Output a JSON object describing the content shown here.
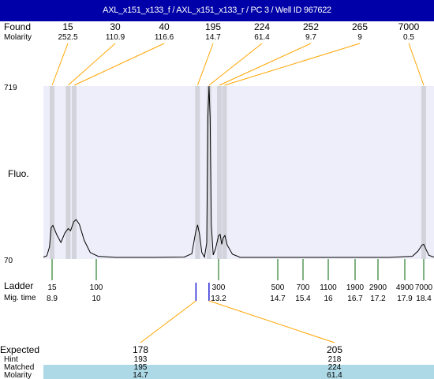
{
  "title": "AXL_x151_x133_f / AXL_x151_x133_r / PC 3 / Well ID 967622",
  "labels": {
    "found": "Found",
    "molarity": "Molarity",
    "fluo": "Fluo.",
    "ladder": "Ladder",
    "mig_time": "Mig. time",
    "expected": "Expected",
    "hint": "Hint",
    "matched": "Matched",
    "molarity_bottom": "Molarity"
  },
  "colors": {
    "title_bg": "#0000a8",
    "plot_bg": "#eeeefa",
    "peak_band": "#d3d3dc",
    "leader": "#ffa500",
    "ladder_tick": "#006400",
    "marker": "#0000cd",
    "match_band": "#add8e6"
  },
  "chart_data": {
    "type": "line",
    "ylim": [
      70,
      719
    ],
    "yticks": [
      "719",
      "70"
    ],
    "found_peaks": [
      {
        "size": "15",
        "molarity": "252.5",
        "time": 8.9
      },
      {
        "size": "30",
        "molarity": "110.9",
        "time": 9.3
      },
      {
        "size": "40",
        "molarity": "116.6",
        "time": 9.45
      },
      {
        "size": "195",
        "molarity": "14.7",
        "time": 12.65
      },
      {
        "size": "224",
        "molarity": "61.4",
        "time": 12.95
      },
      {
        "size": "252",
        "molarity": "9.7",
        "time": 13.22
      },
      {
        "size": "265",
        "molarity": "9",
        "time": 13.35
      },
      {
        "size": "7000",
        "molarity": "0.5",
        "time": 18.4
      }
    ],
    "ladder": [
      {
        "size": "15",
        "time": 8.9
      },
      {
        "size": "100",
        "time": 10
      },
      {
        "size": "300",
        "time": 13.2
      },
      {
        "size": "500",
        "time": 14.7
      },
      {
        "size": "700",
        "time": 15.4
      },
      {
        "size": "1100",
        "time": 16
      },
      {
        "size": "1900",
        "time": 16.7
      },
      {
        "size": "2900",
        "time": 17.2
      },
      {
        "size": "4900",
        "time": 17.9
      },
      {
        "size": "7000",
        "time": 18.4
      }
    ],
    "trace": [
      {
        "t": 8.4,
        "y": 77
      },
      {
        "t": 8.6,
        "y": 82
      },
      {
        "t": 8.75,
        "y": 115
      },
      {
        "t": 8.85,
        "y": 188
      },
      {
        "t": 8.92,
        "y": 196
      },
      {
        "t": 9.02,
        "y": 160
      },
      {
        "t": 9.12,
        "y": 132
      },
      {
        "t": 9.22,
        "y": 168
      },
      {
        "t": 9.3,
        "y": 184
      },
      {
        "t": 9.36,
        "y": 176
      },
      {
        "t": 9.44,
        "y": 210
      },
      {
        "t": 9.5,
        "y": 218
      },
      {
        "t": 9.58,
        "y": 200
      },
      {
        "t": 9.7,
        "y": 140
      },
      {
        "t": 9.85,
        "y": 94
      },
      {
        "t": 10.05,
        "y": 80
      },
      {
        "t": 10.5,
        "y": 76
      },
      {
        "t": 11.5,
        "y": 76
      },
      {
        "t": 12.3,
        "y": 77
      },
      {
        "t": 12.5,
        "y": 90
      },
      {
        "t": 12.6,
        "y": 170
      },
      {
        "t": 12.65,
        "y": 198
      },
      {
        "t": 12.7,
        "y": 165
      },
      {
        "t": 12.76,
        "y": 95
      },
      {
        "t": 12.83,
        "y": 77
      },
      {
        "t": 12.89,
        "y": 130
      },
      {
        "t": 12.92,
        "y": 600
      },
      {
        "t": 12.95,
        "y": 719
      },
      {
        "t": 12.98,
        "y": 600
      },
      {
        "t": 13.01,
        "y": 200
      },
      {
        "t": 13.06,
        "y": 85
      },
      {
        "t": 13.12,
        "y": 108
      },
      {
        "t": 13.2,
        "y": 158
      },
      {
        "t": 13.24,
        "y": 162
      },
      {
        "t": 13.28,
        "y": 125
      },
      {
        "t": 13.32,
        "y": 150
      },
      {
        "t": 13.36,
        "y": 158
      },
      {
        "t": 13.42,
        "y": 122
      },
      {
        "t": 13.55,
        "y": 88
      },
      {
        "t": 13.75,
        "y": 76
      },
      {
        "t": 14.5,
        "y": 76
      },
      {
        "t": 15.5,
        "y": 76
      },
      {
        "t": 16.5,
        "y": 76
      },
      {
        "t": 17.5,
        "y": 76
      },
      {
        "t": 18.1,
        "y": 80
      },
      {
        "t": 18.25,
        "y": 100
      },
      {
        "t": 18.35,
        "y": 122
      },
      {
        "t": 18.4,
        "y": 125
      },
      {
        "t": 18.48,
        "y": 108
      },
      {
        "t": 18.6,
        "y": 84
      },
      {
        "t": 18.8,
        "y": 77
      }
    ],
    "expected": [
      {
        "size": "178",
        "hint": "193",
        "matched": "195",
        "molarity": "14.7",
        "marker_time": 12.65
      },
      {
        "size": "205",
        "hint": "218",
        "matched": "224",
        "molarity": "61.4",
        "marker_time": 12.95
      }
    ]
  }
}
